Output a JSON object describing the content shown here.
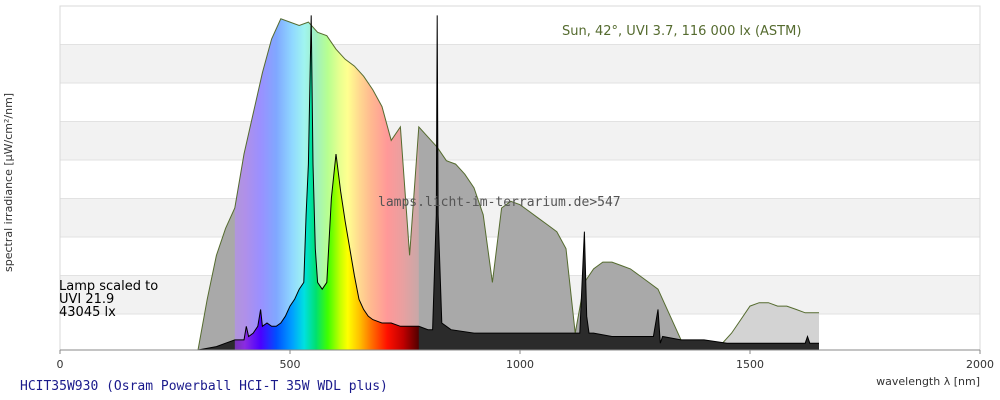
{
  "chart_data": {
    "type": "area",
    "title": "HCIT35W930 (Osram Powerball HCI-T 35W WDL plus)",
    "xlabel": "wavelength λ [nm]",
    "ylabel": "spectral irradiance [µW/cm²/nm]",
    "xlim": [
      0,
      2000
    ],
    "x_ticks": [
      "0",
      "500",
      "1000",
      "1500",
      "2000"
    ],
    "grid": "horizontal bands",
    "sun_annotation": "Sun, 42°, UVI 3.7, 116 000 lx (ASTM)",
    "lamp_annotation": [
      "Lamp scaled to",
      "UVI 21.9",
      "43045 lx"
    ],
    "watermark": "lamps.licht-im-terrarium.de>547",
    "series": [
      {
        "name": "Sun",
        "color": "#556b2f",
        "x": [
          300,
          320,
          340,
          360,
          380,
          400,
          420,
          440,
          460,
          480,
          500,
          520,
          540,
          560,
          580,
          600,
          620,
          640,
          660,
          680,
          700,
          720,
          740,
          760,
          780,
          800,
          820,
          840,
          860,
          880,
          900,
          920,
          940,
          960,
          980,
          1000,
          1020,
          1040,
          1060,
          1080,
          1100,
          1120,
          1140,
          1160,
          1180,
          1200,
          1220,
          1240,
          1260,
          1280,
          1300,
          1320,
          1340,
          1360,
          1380,
          1400,
          1420,
          1440,
          1460,
          1480,
          1500,
          1520,
          1540,
          1560,
          1580,
          1600,
          1620,
          1640,
          1650
        ],
        "y": [
          0.0,
          0.15,
          0.28,
          0.36,
          0.42,
          0.58,
          0.7,
          0.82,
          0.92,
          0.98,
          0.97,
          0.96,
          0.97,
          0.94,
          0.93,
          0.89,
          0.86,
          0.84,
          0.81,
          0.77,
          0.72,
          0.62,
          0.66,
          0.28,
          0.66,
          0.63,
          0.6,
          0.56,
          0.55,
          0.52,
          0.48,
          0.4,
          0.2,
          0.42,
          0.44,
          0.43,
          0.41,
          0.39,
          0.37,
          0.35,
          0.3,
          0.05,
          0.2,
          0.24,
          0.26,
          0.26,
          0.25,
          0.24,
          0.22,
          0.2,
          0.18,
          0.12,
          0.06,
          0.0,
          0.0,
          0.0,
          0.0,
          0.02,
          0.05,
          0.09,
          0.13,
          0.14,
          0.14,
          0.13,
          0.13,
          0.12,
          0.11,
          0.11,
          0.11
        ]
      },
      {
        "name": "Lamp",
        "color": "#000000",
        "x": [
          250,
          300,
          340,
          360,
          380,
          400,
          405,
          410,
          420,
          430,
          436,
          440,
          450,
          460,
          470,
          480,
          490,
          500,
          510,
          520,
          530,
          535,
          540,
          546,
          550,
          555,
          560,
          570,
          580,
          590,
          600,
          610,
          620,
          630,
          640,
          650,
          660,
          670,
          680,
          700,
          720,
          740,
          760,
          780,
          800,
          810,
          818,
          820,
          822,
          830,
          850,
          900,
          950,
          1000,
          1050,
          1100,
          1130,
          1140,
          1145,
          1150,
          1160,
          1200,
          1250,
          1290,
          1300,
          1305,
          1310,
          1350,
          1400,
          1450,
          1500,
          1550,
          1600,
          1620,
          1625,
          1630,
          1650
        ],
        "y": [
          0.0,
          0.0,
          0.01,
          0.02,
          0.03,
          0.03,
          0.07,
          0.04,
          0.05,
          0.07,
          0.12,
          0.07,
          0.08,
          0.07,
          0.07,
          0.08,
          0.1,
          0.13,
          0.15,
          0.18,
          0.2,
          0.4,
          0.55,
          0.99,
          0.55,
          0.3,
          0.2,
          0.18,
          0.2,
          0.45,
          0.58,
          0.47,
          0.38,
          0.3,
          0.22,
          0.15,
          0.12,
          0.1,
          0.09,
          0.08,
          0.08,
          0.07,
          0.07,
          0.07,
          0.06,
          0.06,
          0.4,
          0.99,
          0.4,
          0.08,
          0.06,
          0.05,
          0.05,
          0.05,
          0.05,
          0.05,
          0.05,
          0.35,
          0.1,
          0.05,
          0.05,
          0.04,
          0.04,
          0.04,
          0.12,
          0.02,
          0.04,
          0.03,
          0.03,
          0.02,
          0.02,
          0.02,
          0.02,
          0.02,
          0.04,
          0.02,
          0.02
        ]
      }
    ]
  }
}
